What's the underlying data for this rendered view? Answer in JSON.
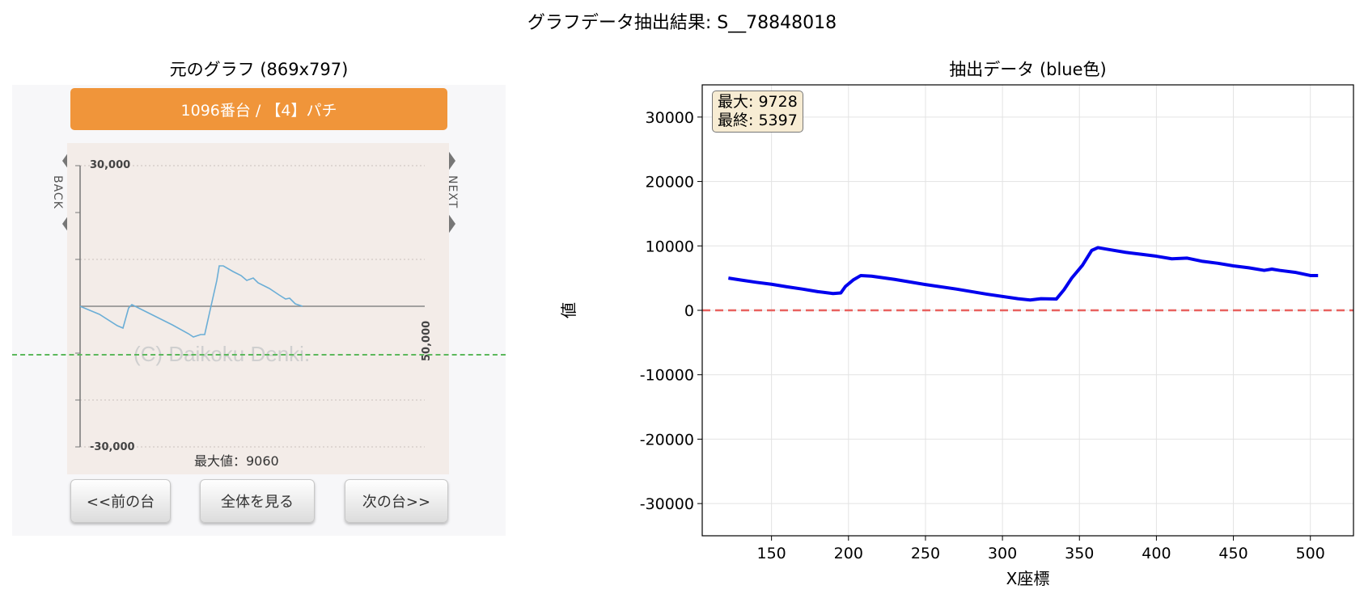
{
  "suptitle": "グラフデータ抽出結果: S__78848018",
  "left_panel": {
    "title": "元のグラフ (869x797)",
    "header": "1096番台 / 【4】パチ",
    "y_top_label": "30,000",
    "y_bottom_label": "-30,000",
    "x_end_label": "50,000",
    "back_label": "BACK",
    "next_label": "NEXT",
    "watermark": "(C) Daikoku Denki.",
    "max_value_label": "最大値：9060",
    "buttons": {
      "prev": "<<前の台",
      "all": "全体を見る",
      "next": "次の台>>"
    },
    "colors": {
      "header": "#f0953a",
      "line": "#6baed6",
      "green_line": "#5cb85c"
    }
  },
  "right_panel": {
    "title": "抽出データ (blue色)",
    "stats": {
      "max": "最大: 9728",
      "final": "最終: 5397"
    }
  },
  "chart_data": {
    "type": "line",
    "title": "抽出データ (blue色)",
    "xlabel": "X座標",
    "ylabel": "値",
    "xlim": [
      105,
      528
    ],
    "ylim": [
      -35000,
      35000
    ],
    "xticks": [
      150,
      200,
      250,
      300,
      350,
      400,
      450,
      500
    ],
    "yticks": [
      -30000,
      -20000,
      -10000,
      0,
      10000,
      20000,
      30000
    ],
    "grid": true,
    "reference_line": {
      "y": 0,
      "color": "#e8615f",
      "style": "dashed"
    },
    "series": [
      {
        "color": "#0000ee",
        "x": [
          122,
          130,
          140,
          150,
          160,
          170,
          180,
          190,
          195,
          198,
          203,
          208,
          215,
          230,
          250,
          270,
          290,
          310,
          318,
          325,
          335,
          340,
          345,
          352,
          358,
          362,
          370,
          380,
          390,
          400,
          410,
          420,
          430,
          440,
          450,
          460,
          470,
          475,
          480,
          490,
          500,
          505
        ],
        "y": [
          5000,
          4700,
          4350,
          4050,
          3650,
          3300,
          2900,
          2600,
          2700,
          3700,
          4700,
          5400,
          5300,
          4800,
          4000,
          3300,
          2500,
          1800,
          1600,
          1800,
          1750,
          3200,
          5000,
          7000,
          9300,
          9728,
          9400,
          9000,
          8700,
          8400,
          8000,
          8100,
          7600,
          7300,
          6900,
          6600,
          6200,
          6400,
          6200,
          5900,
          5400,
          5397
        ]
      }
    ]
  }
}
